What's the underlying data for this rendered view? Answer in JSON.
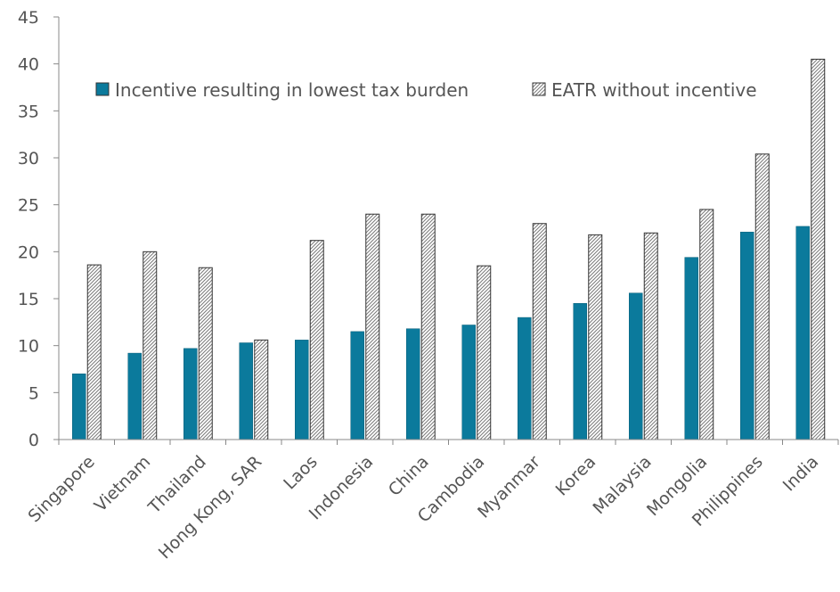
{
  "chart_data": {
    "type": "bar",
    "title": "",
    "xlabel": "",
    "ylabel": "",
    "ylim": [
      0,
      45
    ],
    "yticks": [
      0,
      5,
      10,
      15,
      20,
      25,
      30,
      35,
      40,
      45
    ],
    "grid": false,
    "legend_position": "top",
    "categories": [
      "Singapore",
      "Vietnam",
      "Thailand",
      "Hong Kong, SAR",
      "Laos",
      "Indonesia",
      "China",
      "Cambodia",
      "Myanmar",
      "Korea",
      "Malaysia",
      "Mongolia",
      "Philippines",
      "India"
    ],
    "series": [
      {
        "name": "Incentive resulting in lowest tax burden",
        "fill": "solid",
        "color": "#0B7A9C",
        "values": [
          7.0,
          9.2,
          9.7,
          10.3,
          10.6,
          11.5,
          11.8,
          12.2,
          13.0,
          14.5,
          15.6,
          19.4,
          22.1,
          22.7
        ]
      },
      {
        "name": "EATR without incentive",
        "fill": "hatched",
        "color": "#555555",
        "values": [
          18.6,
          20.0,
          18.3,
          10.6,
          21.2,
          24.0,
          24.0,
          18.5,
          23.0,
          21.8,
          22.0,
          24.5,
          30.4,
          40.5
        ]
      }
    ]
  }
}
